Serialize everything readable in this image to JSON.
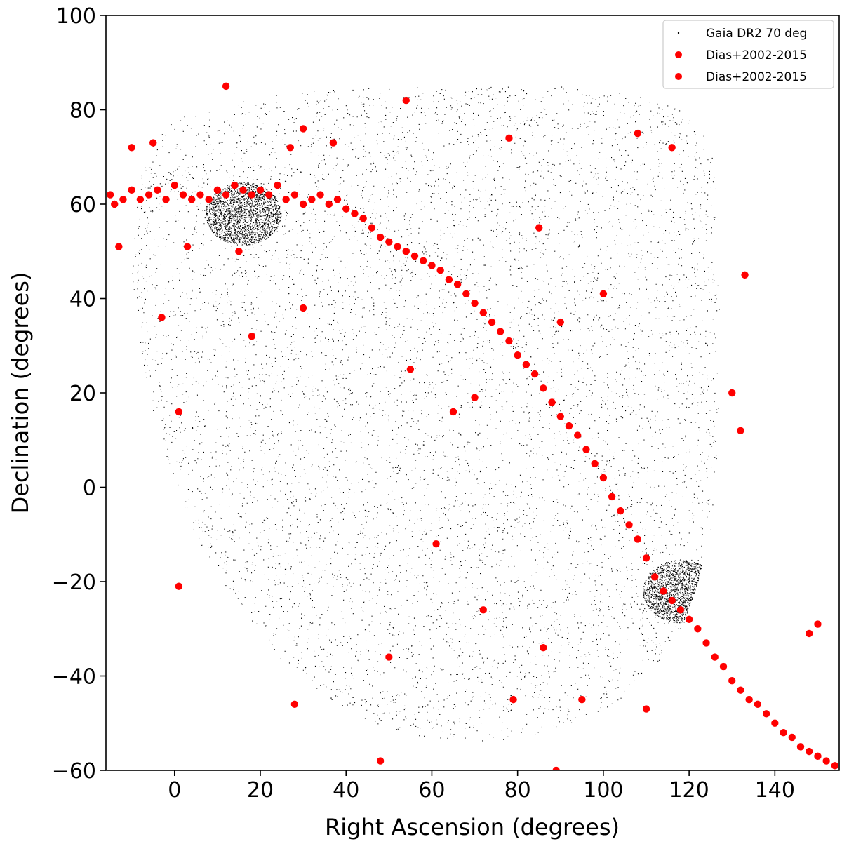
{
  "chart_data": {
    "type": "scatter",
    "title": "",
    "xlabel": "Right Ascension (degrees)",
    "ylabel": "Declination (degrees)",
    "xlim": [
      -16,
      155
    ],
    "ylim": [
      -60,
      100
    ],
    "xticks": [
      0,
      20,
      40,
      60,
      80,
      100,
      120,
      140
    ],
    "yticks": [
      -60,
      -40,
      -20,
      0,
      20,
      40,
      60,
      80,
      100
    ],
    "xtick_labels": [
      "0",
      "20",
      "40",
      "60",
      "80",
      "100",
      "120",
      "140"
    ],
    "ytick_labels": [
      "−60",
      "−40",
      "−20",
      "0",
      "20",
      "40",
      "60",
      "80",
      "100"
    ],
    "grid": false,
    "legend_position": "top-right",
    "legend": [
      "Gaia DR2 70 deg",
      "Dias+2002-2015",
      "Dias+2002-2015"
    ],
    "series": [
      {
        "name": "Gaia DR2 70 deg",
        "marker": "dot",
        "color": "#000000",
        "region_boundary": [
          [
            -10,
            58
          ],
          [
            -6,
            72
          ],
          [
            0,
            78
          ],
          [
            15,
            82
          ],
          [
            30,
            84
          ],
          [
            50,
            85
          ],
          [
            70,
            85
          ],
          [
            90,
            85
          ],
          [
            105,
            84
          ],
          [
            118,
            80
          ],
          [
            124,
            75
          ],
          [
            126,
            70
          ],
          [
            127,
            40
          ],
          [
            127,
            20
          ],
          [
            126,
            0
          ],
          [
            125,
            -10
          ],
          [
            122,
            -20
          ],
          [
            118,
            -31
          ],
          [
            112,
            -38
          ],
          [
            104,
            -45
          ],
          [
            94,
            -50
          ],
          [
            82,
            -53
          ],
          [
            70,
            -54
          ],
          [
            58,
            -53
          ],
          [
            46,
            -50
          ],
          [
            34,
            -44
          ],
          [
            24,
            -36
          ],
          [
            14,
            -25
          ],
          [
            6,
            -12
          ],
          [
            0,
            0
          ],
          [
            -5,
            15
          ],
          [
            -8,
            30
          ],
          [
            -10,
            45
          ],
          [
            -10,
            58
          ]
        ],
        "dense_features": [
          {
            "ra": 16,
            "dec": 58,
            "note": "dense band"
          },
          {
            "ra": 118,
            "dec": -22,
            "note": "dense clump"
          }
        ]
      },
      {
        "name": "Dias+2002-2015",
        "marker": "circle",
        "color": "#ff0000",
        "x": [
          -15,
          -14,
          -12,
          -10,
          -8,
          -6,
          -4,
          -2,
          0,
          2,
          4,
          6,
          8,
          10,
          12,
          14,
          16,
          18,
          20,
          22,
          24,
          26,
          28,
          30,
          32,
          34,
          36,
          38,
          40,
          42,
          44,
          46,
          48,
          50,
          52,
          54,
          56,
          58,
          60,
          62,
          64,
          66,
          68,
          70,
          72,
          74,
          76,
          78,
          80,
          82,
          84,
          86,
          88,
          90,
          92,
          94,
          96,
          98,
          100,
          102,
          104,
          106,
          108,
          110,
          112,
          114,
          116,
          118,
          120,
          122,
          124,
          126,
          128,
          130,
          132,
          134,
          136,
          138,
          140,
          142,
          144,
          146,
          148,
          150,
          152,
          154,
          12,
          54,
          78,
          108,
          116,
          133,
          -10,
          -5,
          27,
          30,
          37,
          -3,
          18,
          1,
          1,
          28,
          48,
          50,
          89,
          95,
          79,
          61,
          72,
          86,
          65,
          30,
          15,
          3,
          -13,
          130,
          132,
          85,
          55,
          70,
          90,
          100,
          110,
          150,
          148
        ],
        "y": [
          62,
          60,
          61,
          63,
          61,
          62,
          63,
          61,
          64,
          62,
          61,
          62,
          61,
          63,
          62,
          64,
          63,
          62,
          63,
          62,
          64,
          61,
          62,
          60,
          61,
          62,
          60,
          61,
          59,
          58,
          57,
          55,
          53,
          52,
          51,
          50,
          49,
          48,
          47,
          46,
          44,
          43,
          41,
          39,
          37,
          35,
          33,
          31,
          28,
          26,
          24,
          21,
          18,
          15,
          13,
          11,
          8,
          5,
          2,
          -2,
          -5,
          -8,
          -11,
          -15,
          -19,
          -22,
          -24,
          -26,
          -28,
          -30,
          -33,
          -36,
          -38,
          -41,
          -43,
          -45,
          -46,
          -48,
          -50,
          -52,
          -53,
          -55,
          -56,
          -57,
          -58,
          -59,
          85,
          82,
          74,
          75,
          72,
          45,
          72,
          73,
          72,
          76,
          73,
          36,
          32,
          16,
          -21,
          -46,
          -58,
          -36,
          -60,
          -45,
          -45,
          -12,
          -26,
          -34,
          16,
          38,
          50,
          51,
          51,
          20,
          12,
          55,
          25,
          19,
          35,
          41,
          -47,
          -29,
          -31
        ]
      },
      {
        "name": "Dias+2002-2015",
        "marker": "circle",
        "color": "#ff0000",
        "x": [],
        "y": []
      }
    ]
  }
}
